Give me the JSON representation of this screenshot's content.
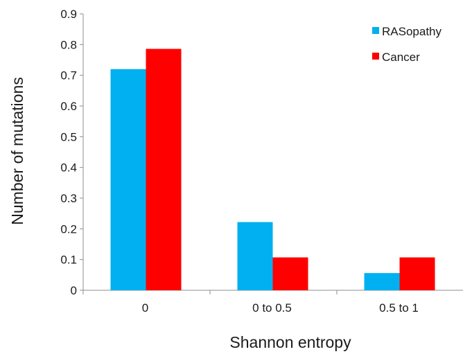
{
  "chart_data": {
    "type": "bar",
    "title": "",
    "xlabel": "Shannon entropy",
    "ylabel": "Number of mutations",
    "categories": [
      "0",
      "0 to 0.5",
      "0.5 to 1"
    ],
    "series": [
      {
        "name": "RASopathy",
        "color": "#00b0f0",
        "values": [
          0.72,
          0.222,
          0.056
        ]
      },
      {
        "name": "Cancer",
        "color": "#ff0000",
        "values": [
          0.786,
          0.107,
          0.107
        ]
      }
    ],
    "ylim": [
      0,
      0.9
    ],
    "yticks": [
      "0",
      "0.1",
      "0.2",
      "0.3",
      "0.4",
      "0.5",
      "0.6",
      "0.7",
      "0.8",
      "0.9"
    ],
    "grid": false,
    "legend_position": "top-right"
  }
}
